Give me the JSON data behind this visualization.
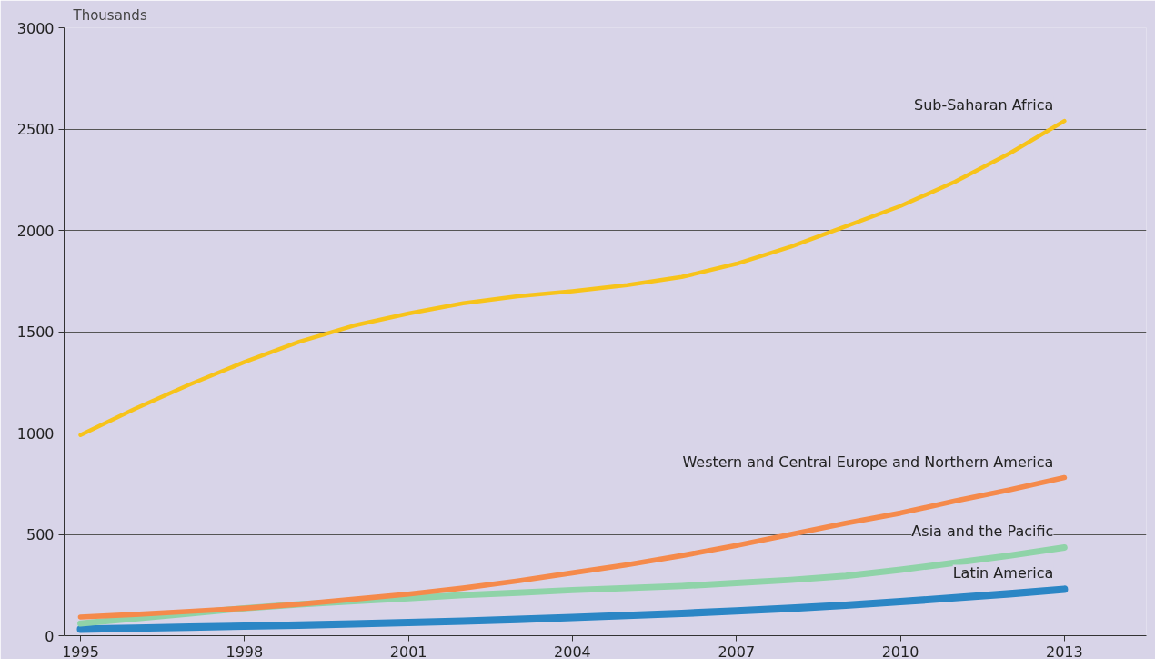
{
  "chart_data": {
    "type": "line",
    "ylabel": "Thousands",
    "x": [
      1995,
      1996,
      1997,
      1998,
      1999,
      2000,
      2001,
      2002,
      2003,
      2004,
      2005,
      2006,
      2007,
      2008,
      2009,
      2010,
      2011,
      2012,
      2013
    ],
    "series": [
      {
        "name": "Sub-Saharan Africa",
        "color": "#f7c31a",
        "values": [
          990,
          1120,
          1240,
          1350,
          1450,
          1530,
          1590,
          1640,
          1675,
          1700,
          1730,
          1770,
          1835,
          1920,
          2020,
          2120,
          2240,
          2380,
          2540
        ]
      },
      {
        "name": "Western and Central Europe and Northern America",
        "color": "#f58a4b",
        "values": [
          92,
          105,
          120,
          135,
          155,
          180,
          205,
          235,
          270,
          310,
          350,
          395,
          445,
          500,
          555,
          605,
          665,
          720,
          780
        ]
      },
      {
        "name": "Asia and the Pacific",
        "color": "#8fd3a8",
        "values": [
          60,
          85,
          110,
          135,
          155,
          170,
          185,
          200,
          212,
          225,
          235,
          245,
          260,
          275,
          295,
          325,
          360,
          395,
          435
        ]
      },
      {
        "name": "Latin America",
        "color": "#2b86c5",
        "values": [
          32,
          37,
          42,
          47,
          52,
          58,
          65,
          72,
          80,
          90,
          100,
          110,
          122,
          135,
          150,
          168,
          187,
          207,
          229
        ]
      }
    ],
    "xlim": [
      1994.7,
      2014.5
    ],
    "ylim": [
      0,
      3000
    ],
    "xticks": [
      1995,
      1998,
      2001,
      2004,
      2007,
      2010,
      2013
    ],
    "yticks": [
      0,
      500,
      1000,
      1500,
      2000,
      2500,
      3000
    ],
    "grid": "y",
    "legend": false,
    "line_style": "solid",
    "marker": "none"
  }
}
